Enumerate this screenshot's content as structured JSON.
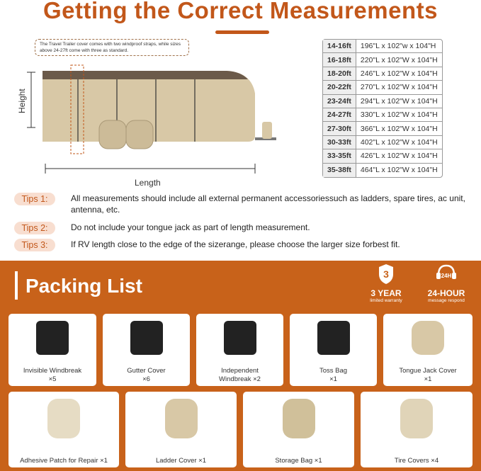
{
  "title": "Getting the Correct Measurements",
  "note": "The Travel Trailer cover comes with two windproof straps, while sizes above 24-27ft come with three as standard.",
  "diagram": {
    "height_label": "Height",
    "length_label": "Length"
  },
  "sizes": [
    {
      "size": "14-16ft",
      "dims": "196\"L x 102\"w x 104\"H"
    },
    {
      "size": "16-18ft",
      "dims": "220\"L x 102\"W x 104\"H"
    },
    {
      "size": "18-20ft",
      "dims": "246\"L x 102\"W x 104\"H"
    },
    {
      "size": "20-22ft",
      "dims": "270\"L x 102\"W x 104\"H"
    },
    {
      "size": "23-24ft",
      "dims": "294\"L x 102\"W x 104\"H"
    },
    {
      "size": "24-27ft",
      "dims": "330\"L x 102\"W x 104\"H"
    },
    {
      "size": "27-30ft",
      "dims": "366\"L x 102\"W x 104\"H"
    },
    {
      "size": "30-33ft",
      "dims": "402\"L x 102\"W x 104\"H"
    },
    {
      "size": "33-35ft",
      "dims": "426\"L x 102\"W x 104\"H"
    },
    {
      "size": "35-38ft",
      "dims": "464\"L x 102\"W x 104\"H"
    }
  ],
  "tips": [
    {
      "label": "Tips 1:",
      "text": "All measurements should include all external permanent accessoriessuch as ladders, spare tires, ac unit, antenna, etc."
    },
    {
      "label": "Tips 2:",
      "text": "Do not include your tongue jack as part of length measurement."
    },
    {
      "label": "Tips 3:",
      "text": "If RV length close to the edge of the sizerange, please choose the larger size forbest fit."
    }
  ],
  "packing": {
    "title": "Packing List",
    "warranty": {
      "num": "3",
      "small": "YEAR",
      "title": "3 YEAR",
      "sub": "limited warranty"
    },
    "support": {
      "icon": "24H",
      "title": "24-HOUR",
      "sub": "message respond"
    },
    "items": [
      {
        "name": "Invisible Windbreak",
        "qty": "×5"
      },
      {
        "name": "Gutter Cover",
        "qty": "×6"
      },
      {
        "name": "Independent",
        "qty": "Windbreak ×2"
      },
      {
        "name": "Toss Bag",
        "qty": "×1"
      },
      {
        "name": "Tongue Jack Cover",
        "qty": "×1"
      },
      {
        "name": "Adhesive Patch for Repair ×1"
      },
      {
        "name": "Ladder Cover ×1"
      },
      {
        "name": "Storage Bag ×1"
      },
      {
        "name": "Tire Covers ×4"
      }
    ]
  },
  "colors": {
    "accent": "#c2571a",
    "band": "#c8621a",
    "tan": "#d8c8a6",
    "brown": "#6b5a4a"
  }
}
